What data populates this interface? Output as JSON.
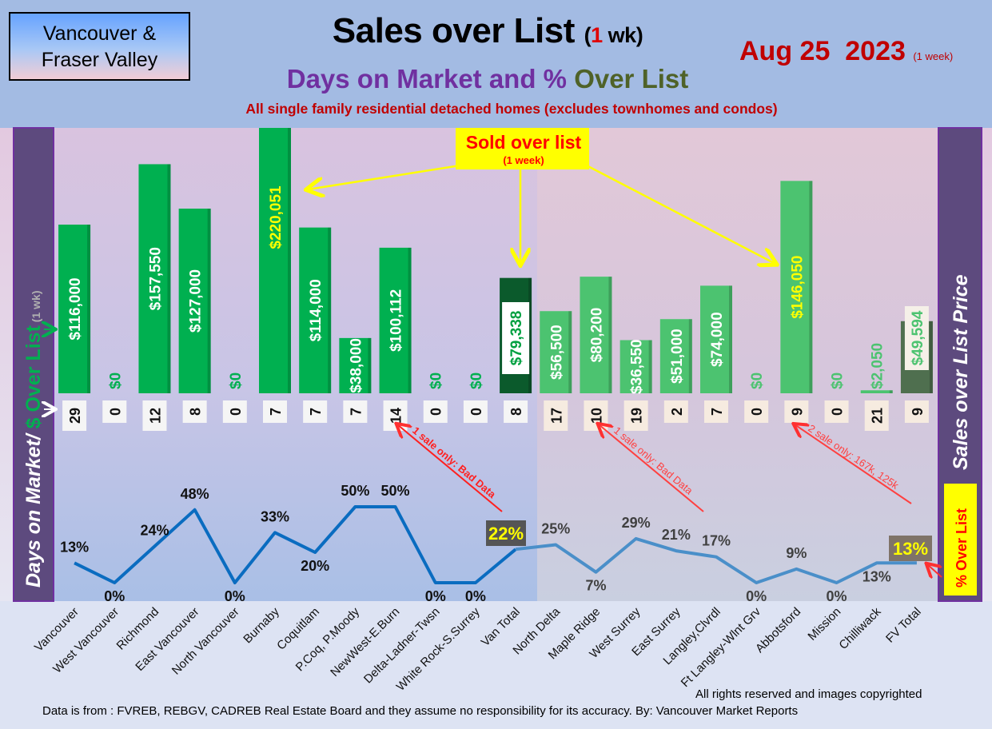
{
  "header": {
    "region_line1": "Vancouver &",
    "region_line2": "Fraser Valley",
    "title_main": "Sales over List",
    "title_paren_open": "(",
    "title_paren_num": "1",
    "title_paren_rest": " wk)",
    "date": "Aug 25  2023",
    "date_note": "(1 week)",
    "subtitle_part1": "Days on Market and % ",
    "subtitle_part2": "Over List",
    "subtitle2": "All single family residential detached homes (excludes townhomes and condos)"
  },
  "side_labels": {
    "left_part1": "Days on Market/ ",
    "left_part2": "$ Over List",
    "left_part3": " (1 wk)",
    "right_main": "Sales over List Price",
    "right_box": "% Over List"
  },
  "annotations": {
    "sold_over_list": "Sold over list",
    "sold_over_list_sub": "(1 week)",
    "bad_data_1": "1 sale only: Bad Data",
    "bad_data_2": "1 sale only: Bad Data",
    "two_sale": "2 sale only: 167k, 125k"
  },
  "footer": {
    "copyright": "All rights reserved and  images copyrighted",
    "source": "Data is from : FVREB, REBGV, CADREB Real Estate Board and they assume no responsibility for its accuracy. By: Vancouver Market Reports"
  },
  "colors": {
    "bar_vancouver": "#00b050",
    "bar_van_total": "#0b5a2c",
    "bar_fraser_valley": "#4cc370",
    "bar_fv_total": "#4f6f4f",
    "line_vancouver": "#0a6cc0",
    "line_fraser_valley": "#4a8fc9",
    "highlight_text": "#ffff00"
  },
  "chart_data": {
    "type": "bar+line",
    "categories": [
      "Vancouver",
      "West Vancouver",
      "Richmond",
      "East Vancouver",
      "North Vancouver",
      "Burnaby",
      "Coquitlam",
      "P.Coq, P.Moody",
      "NewWest-E.Burn",
      "Delta-Ladner-Twsn",
      "White Rock-S.Surrey",
      "Van Total",
      "North Delta",
      "Maple Ridge",
      "West Surrey",
      "East Surrey",
      "Langley,Clvrdl",
      "Ft Langley-Wlnt Grv",
      "Abbotsford",
      "Mission",
      "Chilliwack",
      "FV Total"
    ],
    "series": [
      {
        "name": "$ Over List",
        "type": "bar",
        "values": [
          116000,
          0,
          157550,
          127000,
          0,
          220051,
          114000,
          38000,
          100112,
          0,
          0,
          79338,
          56500,
          80200,
          36550,
          51000,
          74000,
          0,
          146050,
          0,
          2050,
          49594
        ],
        "labels": [
          "$116,000",
          "$0",
          "$157,550",
          "$127,000",
          "$0",
          "$220,051",
          "$114,000",
          "$38,000",
          "$100,112",
          "$0",
          "$0",
          "$79,338",
          "$56,500",
          "$80,200",
          "$36,550",
          "$51,000",
          "$74,000",
          "$0",
          "$146,050",
          "$0",
          "$2,050",
          "$49,594"
        ]
      },
      {
        "name": "Days on Market",
        "type": "label-row",
        "values": [
          29,
          0,
          12,
          8,
          0,
          7,
          7,
          7,
          14,
          0,
          0,
          8,
          17,
          10,
          19,
          2,
          7,
          0,
          9,
          0,
          21,
          9
        ]
      },
      {
        "name": "% Over List",
        "type": "line",
        "values": [
          13,
          0,
          24,
          48,
          0,
          33,
          20,
          50,
          50,
          0,
          0,
          22,
          25,
          7,
          29,
          21,
          17,
          0,
          9,
          0,
          13,
          13
        ],
        "labels": [
          "13%",
          "0%",
          "24%",
          "48%",
          "0%",
          "33%",
          "20%",
          "50%",
          "50%",
          "0%",
          "0%",
          "22%",
          "25%",
          "7%",
          "29%",
          "21%",
          "17%",
          "0%",
          "9%",
          "0%",
          "13%",
          "13%"
        ]
      }
    ],
    "groups": {
      "vancouver": [
        0,
        11
      ],
      "fraser_valley": [
        12,
        21
      ]
    },
    "grid": false,
    "legend": "none"
  }
}
